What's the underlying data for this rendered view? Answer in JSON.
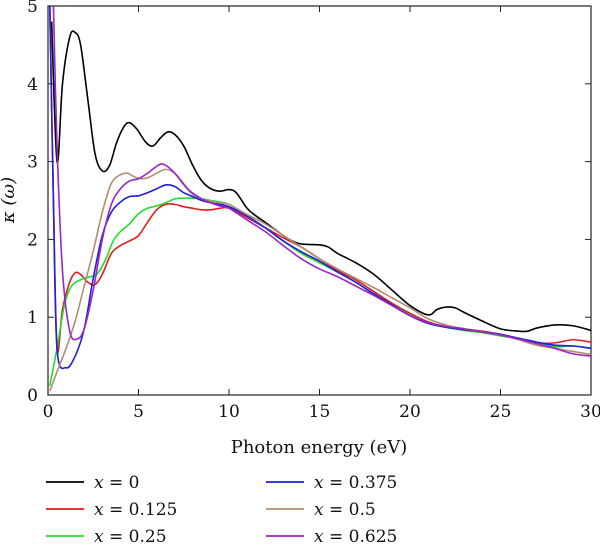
{
  "chart_data": {
    "type": "line",
    "title": "",
    "xlabel": "Photon energy (eV)",
    "ylabel": "κ (ω)",
    "xlim": [
      0,
      30
    ],
    "ylim": [
      0,
      5
    ],
    "xticks": [
      "0",
      "5",
      "10",
      "15",
      "20",
      "25",
      "30"
    ],
    "yticks": [
      "0",
      "1",
      "2",
      "3",
      "4",
      "5"
    ],
    "grid": false,
    "legend_position": "below",
    "series": [
      {
        "name": "x = 0",
        "label_var": "x",
        "label_value": "0",
        "color": "#000000",
        "points": [
          [
            0.2,
            4.8
          ],
          [
            0.5,
            3.0
          ],
          [
            0.8,
            4.0
          ],
          [
            1.2,
            4.6
          ],
          [
            1.5,
            4.66
          ],
          [
            1.8,
            4.5
          ],
          [
            2.2,
            3.8
          ],
          [
            2.6,
            3.1
          ],
          [
            3.0,
            2.88
          ],
          [
            3.4,
            2.95
          ],
          [
            3.8,
            3.25
          ],
          [
            4.2,
            3.45
          ],
          [
            4.5,
            3.5
          ],
          [
            4.9,
            3.42
          ],
          [
            5.4,
            3.25
          ],
          [
            5.8,
            3.2
          ],
          [
            6.2,
            3.3
          ],
          [
            6.6,
            3.38
          ],
          [
            7.0,
            3.35
          ],
          [
            7.5,
            3.2
          ],
          [
            8.0,
            2.95
          ],
          [
            8.5,
            2.75
          ],
          [
            9.0,
            2.65
          ],
          [
            9.5,
            2.62
          ],
          [
            10.0,
            2.64
          ],
          [
            10.4,
            2.6
          ],
          [
            11.0,
            2.4
          ],
          [
            11.5,
            2.3
          ],
          [
            12.0,
            2.22
          ],
          [
            13.0,
            2.05
          ],
          [
            13.5,
            1.98
          ],
          [
            14.0,
            1.94
          ],
          [
            15.0,
            1.93
          ],
          [
            15.5,
            1.9
          ],
          [
            16.0,
            1.82
          ],
          [
            17.0,
            1.7
          ],
          [
            18.0,
            1.55
          ],
          [
            19.0,
            1.35
          ],
          [
            20.0,
            1.15
          ],
          [
            21.0,
            1.03
          ],
          [
            21.5,
            1.1
          ],
          [
            22.0,
            1.13
          ],
          [
            22.5,
            1.12
          ],
          [
            23.0,
            1.06
          ],
          [
            24.0,
            0.95
          ],
          [
            25.0,
            0.85
          ],
          [
            26.0,
            0.82
          ],
          [
            26.5,
            0.82
          ],
          [
            27.0,
            0.86
          ],
          [
            28.0,
            0.9
          ],
          [
            29.0,
            0.89
          ],
          [
            30.0,
            0.83
          ]
        ]
      },
      {
        "name": "x = 0.125",
        "label_var": "x",
        "label_value": "0.125",
        "color": "#e31a1c",
        "points": [
          [
            0.1,
            5.0
          ],
          [
            0.3,
            2.5
          ],
          [
            0.5,
            0.6
          ],
          [
            0.8,
            1.1
          ],
          [
            1.2,
            1.45
          ],
          [
            1.5,
            1.57
          ],
          [
            1.8,
            1.55
          ],
          [
            2.2,
            1.45
          ],
          [
            2.6,
            1.42
          ],
          [
            3.0,
            1.55
          ],
          [
            3.5,
            1.82
          ],
          [
            4.0,
            1.92
          ],
          [
            4.5,
            1.98
          ],
          [
            5.0,
            2.05
          ],
          [
            5.5,
            2.22
          ],
          [
            6.0,
            2.38
          ],
          [
            6.5,
            2.45
          ],
          [
            7.0,
            2.45
          ],
          [
            7.5,
            2.42
          ],
          [
            8.0,
            2.4
          ],
          [
            8.5,
            2.38
          ],
          [
            9.0,
            2.38
          ],
          [
            9.5,
            2.4
          ],
          [
            10.0,
            2.4
          ],
          [
            11.0,
            2.28
          ],
          [
            12.0,
            2.15
          ],
          [
            13.0,
            2.02
          ],
          [
            14.0,
            1.9
          ],
          [
            15.0,
            1.75
          ],
          [
            16.0,
            1.6
          ],
          [
            17.0,
            1.48
          ],
          [
            18.0,
            1.33
          ],
          [
            19.0,
            1.18
          ],
          [
            20.0,
            1.05
          ],
          [
            21.0,
            0.94
          ],
          [
            22.0,
            0.88
          ],
          [
            23.0,
            0.85
          ],
          [
            24.0,
            0.82
          ],
          [
            25.0,
            0.78
          ],
          [
            26.0,
            0.72
          ],
          [
            27.0,
            0.67
          ],
          [
            28.0,
            0.67
          ],
          [
            29.0,
            0.71
          ],
          [
            30.0,
            0.68
          ]
        ]
      },
      {
        "name": "x = 0.25",
        "label_var": "x",
        "label_value": "0.25",
        "color": "#22dd22",
        "points": [
          [
            0.1,
            0.12
          ],
          [
            0.5,
            0.6
          ],
          [
            0.9,
            1.15
          ],
          [
            1.3,
            1.4
          ],
          [
            1.8,
            1.48
          ],
          [
            2.3,
            1.52
          ],
          [
            2.7,
            1.55
          ],
          [
            3.2,
            1.75
          ],
          [
            3.6,
            1.98
          ],
          [
            4.0,
            2.1
          ],
          [
            4.5,
            2.2
          ],
          [
            5.0,
            2.33
          ],
          [
            5.5,
            2.4
          ],
          [
            6.0,
            2.43
          ],
          [
            6.5,
            2.47
          ],
          [
            7.0,
            2.52
          ],
          [
            7.5,
            2.53
          ],
          [
            8.0,
            2.53
          ],
          [
            8.5,
            2.52
          ],
          [
            9.0,
            2.5
          ],
          [
            9.5,
            2.48
          ],
          [
            10.0,
            2.45
          ],
          [
            11.0,
            2.3
          ],
          [
            12.0,
            2.15
          ],
          [
            13.0,
            1.98
          ],
          [
            14.0,
            1.82
          ],
          [
            15.0,
            1.7
          ],
          [
            16.0,
            1.58
          ],
          [
            17.0,
            1.45
          ],
          [
            18.0,
            1.3
          ],
          [
            19.0,
            1.16
          ],
          [
            20.0,
            1.03
          ],
          [
            21.0,
            0.92
          ],
          [
            22.0,
            0.87
          ],
          [
            23.0,
            0.83
          ],
          [
            24.0,
            0.8
          ],
          [
            25.0,
            0.76
          ],
          [
            26.0,
            0.72
          ],
          [
            27.0,
            0.67
          ],
          [
            28.0,
            0.62
          ],
          [
            29.0,
            0.63
          ],
          [
            30.0,
            0.6
          ]
        ]
      },
      {
        "name": "x = 0.375",
        "label_var": "x",
        "label_value": "0.375",
        "color": "#1f1fdd",
        "points": [
          [
            0.1,
            5.0
          ],
          [
            0.3,
            2.5
          ],
          [
            0.5,
            0.6
          ],
          [
            1.0,
            0.35
          ],
          [
            1.5,
            0.5
          ],
          [
            2.0,
            0.85
          ],
          [
            2.5,
            1.5
          ],
          [
            3.0,
            2.05
          ],
          [
            3.5,
            2.35
          ],
          [
            4.0,
            2.48
          ],
          [
            4.5,
            2.55
          ],
          [
            5.0,
            2.56
          ],
          [
            5.5,
            2.6
          ],
          [
            6.0,
            2.65
          ],
          [
            6.5,
            2.7
          ],
          [
            7.0,
            2.68
          ],
          [
            7.5,
            2.6
          ],
          [
            8.0,
            2.55
          ],
          [
            8.5,
            2.5
          ],
          [
            9.0,
            2.47
          ],
          [
            9.5,
            2.45
          ],
          [
            10.0,
            2.42
          ],
          [
            11.0,
            2.3
          ],
          [
            12.0,
            2.15
          ],
          [
            13.0,
            1.98
          ],
          [
            14.0,
            1.84
          ],
          [
            15.0,
            1.72
          ],
          [
            16.0,
            1.58
          ],
          [
            17.0,
            1.45
          ],
          [
            18.0,
            1.3
          ],
          [
            19.0,
            1.16
          ],
          [
            20.0,
            1.02
          ],
          [
            21.0,
            0.92
          ],
          [
            22.0,
            0.87
          ],
          [
            23.0,
            0.84
          ],
          [
            24.0,
            0.81
          ],
          [
            25.0,
            0.78
          ],
          [
            26.0,
            0.73
          ],
          [
            27.0,
            0.68
          ],
          [
            28.0,
            0.64
          ],
          [
            29.0,
            0.63
          ],
          [
            30.0,
            0.6
          ]
        ]
      },
      {
        "name": "x = 0.5",
        "label_var": "x",
        "label_value": "0.5",
        "color": "#b08d73",
        "points": [
          [
            0.1,
            0.05
          ],
          [
            0.5,
            0.3
          ],
          [
            1.0,
            0.6
          ],
          [
            1.5,
            0.95
          ],
          [
            2.0,
            1.4
          ],
          [
            2.5,
            1.85
          ],
          [
            3.0,
            2.35
          ],
          [
            3.5,
            2.72
          ],
          [
            4.0,
            2.83
          ],
          [
            4.4,
            2.85
          ],
          [
            4.8,
            2.8
          ],
          [
            5.2,
            2.78
          ],
          [
            5.6,
            2.8
          ],
          [
            6.0,
            2.85
          ],
          [
            6.5,
            2.9
          ],
          [
            7.0,
            2.85
          ],
          [
            7.5,
            2.7
          ],
          [
            8.0,
            2.58
          ],
          [
            8.5,
            2.52
          ],
          [
            9.0,
            2.49
          ],
          [
            9.5,
            2.47
          ],
          [
            10.0,
            2.45
          ],
          [
            11.0,
            2.32
          ],
          [
            12.0,
            2.2
          ],
          [
            13.0,
            2.05
          ],
          [
            14.0,
            1.9
          ],
          [
            15.0,
            1.75
          ],
          [
            16.0,
            1.62
          ],
          [
            17.0,
            1.5
          ],
          [
            18.0,
            1.38
          ],
          [
            19.0,
            1.25
          ],
          [
            20.0,
            1.12
          ],
          [
            21.0,
            0.98
          ],
          [
            22.0,
            0.9
          ],
          [
            23.0,
            0.85
          ],
          [
            24.0,
            0.81
          ],
          [
            25.0,
            0.77
          ],
          [
            26.0,
            0.71
          ],
          [
            27.0,
            0.64
          ],
          [
            28.0,
            0.6
          ],
          [
            29.0,
            0.56
          ],
          [
            30.0,
            0.52
          ]
        ]
      },
      {
        "name": "x = 0.625",
        "label_var": "x",
        "label_value": "0.625",
        "color": "#9b26c4",
        "points": [
          [
            0.3,
            5.0
          ],
          [
            0.5,
            3.2
          ],
          [
            0.8,
            1.6
          ],
          [
            1.2,
            0.82
          ],
          [
            1.6,
            0.72
          ],
          [
            2.0,
            0.85
          ],
          [
            2.5,
            1.35
          ],
          [
            3.0,
            2.0
          ],
          [
            3.5,
            2.45
          ],
          [
            4.0,
            2.65
          ],
          [
            4.5,
            2.75
          ],
          [
            5.0,
            2.78
          ],
          [
            5.5,
            2.85
          ],
          [
            6.0,
            2.94
          ],
          [
            6.3,
            2.97
          ],
          [
            6.7,
            2.92
          ],
          [
            7.2,
            2.8
          ],
          [
            7.8,
            2.63
          ],
          [
            8.5,
            2.52
          ],
          [
            9.0,
            2.47
          ],
          [
            9.5,
            2.43
          ],
          [
            10.0,
            2.4
          ],
          [
            11.0,
            2.25
          ],
          [
            12.0,
            2.1
          ],
          [
            13.0,
            1.92
          ],
          [
            14.0,
            1.75
          ],
          [
            15.0,
            1.62
          ],
          [
            16.0,
            1.52
          ],
          [
            17.0,
            1.4
          ],
          [
            18.0,
            1.28
          ],
          [
            19.0,
            1.15
          ],
          [
            20.0,
            1.02
          ],
          [
            21.0,
            0.93
          ],
          [
            22.0,
            0.88
          ],
          [
            23.0,
            0.85
          ],
          [
            24.0,
            0.81
          ],
          [
            25.0,
            0.77
          ],
          [
            26.0,
            0.72
          ],
          [
            27.0,
            0.66
          ],
          [
            28.0,
            0.6
          ],
          [
            29.0,
            0.53
          ],
          [
            30.0,
            0.5
          ]
        ]
      }
    ]
  }
}
